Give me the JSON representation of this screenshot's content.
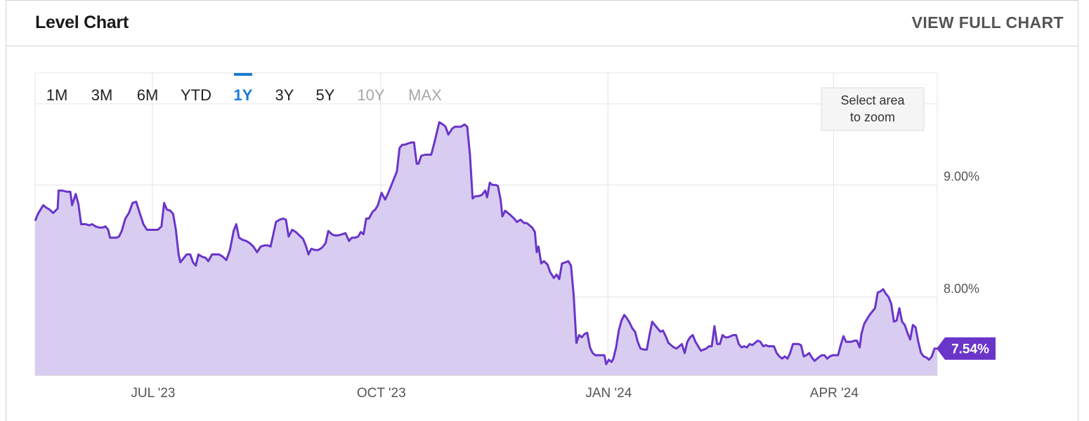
{
  "header": {
    "title": "Level Chart",
    "view_full": "VIEW FULL CHART"
  },
  "range_buttons": {
    "items": [
      "1M",
      "3M",
      "6M",
      "YTD",
      "1Y",
      "3Y",
      "5Y",
      "10Y",
      "MAX"
    ],
    "active": "1Y",
    "disabled": [
      "10Y",
      "MAX"
    ]
  },
  "zoom_hint": {
    "line1": "Select area",
    "line2": "to zoom"
  },
  "colors": {
    "line": "#6a35c9",
    "fill": "#d8cdf1",
    "active": "#1a7bd6",
    "grid": "#e4e4e4",
    "badge": "#6a35c9"
  },
  "chart_data": {
    "type": "area",
    "y_ticks": [
      "9.00%",
      "8.00%"
    ],
    "x_ticks": [
      "JUL '23",
      "OCT '23",
      "JAN '24",
      "APR '24"
    ],
    "last_value_label": "7.54%",
    "ylim": [
      7.3,
      10.0
    ],
    "xlim": [
      0,
      100
    ],
    "x_tick_positions": [
      13,
      38.3,
      63.5,
      88.5
    ],
    "y_tick_values": [
      9.0,
      8.0
    ],
    "grid": true,
    "points": [
      [
        0,
        8.68
      ],
      [
        0.3,
        8.74
      ],
      [
        0.6,
        8.78
      ],
      [
        0.9,
        8.82
      ],
      [
        1.2,
        8.8
      ],
      [
        1.6,
        8.78
      ],
      [
        2,
        8.75
      ],
      [
        2.5,
        8.79
      ],
      [
        2.6,
        8.95
      ],
      [
        3,
        8.95
      ],
      [
        3.5,
        8.94
      ],
      [
        3.9,
        8.94
      ],
      [
        4.1,
        8.82
      ],
      [
        4.5,
        8.92
      ],
      [
        4.8,
        8.83
      ],
      [
        5.1,
        8.65
      ],
      [
        5.6,
        8.65
      ],
      [
        6,
        8.64
      ],
      [
        6.3,
        8.65
      ],
      [
        6.7,
        8.63
      ],
      [
        7.1,
        8.62
      ],
      [
        7.5,
        8.62
      ],
      [
        7.8,
        8.63
      ],
      [
        8.1,
        8.6
      ],
      [
        8.3,
        8.53
      ],
      [
        8.6,
        8.53
      ],
      [
        9,
        8.53
      ],
      [
        9.3,
        8.54
      ],
      [
        9.6,
        8.59
      ],
      [
        10,
        8.7
      ],
      [
        10.4,
        8.75
      ],
      [
        10.8,
        8.84
      ],
      [
        11.2,
        8.85
      ],
      [
        11.6,
        8.75
      ],
      [
        12,
        8.65
      ],
      [
        12.4,
        8.6
      ],
      [
        12.8,
        8.6
      ],
      [
        13.2,
        8.6
      ],
      [
        13.6,
        8.6
      ],
      [
        14,
        8.63
      ],
      [
        14.3,
        8.84
      ],
      [
        14.6,
        8.78
      ],
      [
        15,
        8.77
      ],
      [
        15.3,
        8.74
      ],
      [
        15.6,
        8.6
      ],
      [
        15.9,
        8.38
      ],
      [
        16.1,
        8.31
      ],
      [
        16.4,
        8.34
      ],
      [
        16.8,
        8.38
      ],
      [
        17.2,
        8.38
      ],
      [
        17.5,
        8.31
      ],
      [
        17.8,
        8.28
      ],
      [
        18.1,
        8.38
      ],
      [
        18.5,
        8.36
      ],
      [
        18.9,
        8.35
      ],
      [
        19.2,
        8.32
      ],
      [
        19.6,
        8.38
      ],
      [
        20,
        8.38
      ],
      [
        20.4,
        8.38
      ],
      [
        20.8,
        8.36
      ],
      [
        21.2,
        8.33
      ],
      [
        21.6,
        8.42
      ],
      [
        22,
        8.59
      ],
      [
        22.3,
        8.65
      ],
      [
        22.6,
        8.53
      ],
      [
        23,
        8.51
      ],
      [
        23.4,
        8.5
      ],
      [
        23.8,
        8.48
      ],
      [
        24.2,
        8.45
      ],
      [
        24.6,
        8.4
      ],
      [
        25,
        8.45
      ],
      [
        25.4,
        8.46
      ],
      [
        25.8,
        8.46
      ],
      [
        26.1,
        8.45
      ],
      [
        26.4,
        8.56
      ],
      [
        26.7,
        8.67
      ],
      [
        27.1,
        8.69
      ],
      [
        27.5,
        8.7
      ],
      [
        27.8,
        8.69
      ],
      [
        28.1,
        8.54
      ],
      [
        28.5,
        8.6
      ],
      [
        28.9,
        8.58
      ],
      [
        29.3,
        8.55
      ],
      [
        29.7,
        8.52
      ],
      [
        30,
        8.46
      ],
      [
        30.3,
        8.38
      ],
      [
        30.6,
        8.43
      ],
      [
        31,
        8.42
      ],
      [
        31.4,
        8.42
      ],
      [
        31.8,
        8.44
      ],
      [
        32.2,
        8.48
      ],
      [
        32.5,
        8.59
      ],
      [
        32.9,
        8.56
      ],
      [
        33.2,
        8.55
      ],
      [
        33.6,
        8.55
      ],
      [
        34,
        8.56
      ],
      [
        34.4,
        8.57
      ],
      [
        34.8,
        8.5
      ],
      [
        35.1,
        8.53
      ],
      [
        35.5,
        8.53
      ],
      [
        35.8,
        8.54
      ],
      [
        36.1,
        8.58
      ],
      [
        36.4,
        8.56
      ],
      [
        36.7,
        8.7
      ],
      [
        37,
        8.7
      ],
      [
        37.4,
        8.76
      ],
      [
        37.7,
        8.78
      ],
      [
        38,
        8.82
      ],
      [
        38.4,
        8.93
      ],
      [
        38.8,
        8.87
      ],
      [
        39.1,
        8.92
      ],
      [
        39.5,
        9.0
      ],
      [
        39.8,
        9.06
      ],
      [
        40.1,
        9.12
      ],
      [
        40.4,
        9.33
      ],
      [
        40.7,
        9.36
      ],
      [
        41,
        9.36
      ],
      [
        41.3,
        9.37
      ],
      [
        41.7,
        9.38
      ],
      [
        42,
        9.38
      ],
      [
        42.3,
        9.19
      ],
      [
        42.5,
        9.19
      ],
      [
        42.8,
        9.26
      ],
      [
        43.2,
        9.27
      ],
      [
        43.6,
        9.27
      ],
      [
        43.9,
        9.27
      ],
      [
        44.2,
        9.36
      ],
      [
        44.5,
        9.46
      ],
      [
        44.8,
        9.56
      ],
      [
        45.2,
        9.54
      ],
      [
        45.5,
        9.52
      ],
      [
        45.8,
        9.45
      ],
      [
        46.2,
        9.5
      ],
      [
        46.5,
        9.52
      ],
      [
        46.9,
        9.52
      ],
      [
        47.2,
        9.52
      ],
      [
        47.6,
        9.54
      ],
      [
        47.9,
        9.52
      ],
      [
        48.2,
        9.27
      ],
      [
        48.5,
        8.88
      ],
      [
        48.8,
        8.9
      ],
      [
        49.1,
        8.9
      ],
      [
        49.5,
        8.91
      ],
      [
        49.9,
        8.95
      ],
      [
        50.1,
        8.89
      ],
      [
        50.4,
        9.02
      ],
      [
        50.7,
        9.0
      ],
      [
        51.1,
        9.0
      ],
      [
        51.3,
        8.99
      ],
      [
        51.6,
        8.87
      ],
      [
        51.8,
        8.72
      ],
      [
        52.1,
        8.77
      ],
      [
        52.4,
        8.75
      ],
      [
        52.7,
        8.73
      ],
      [
        53.1,
        8.7
      ],
      [
        53.4,
        8.67
      ],
      [
        53.8,
        8.69
      ],
      [
        54.2,
        8.66
      ],
      [
        54.5,
        8.66
      ],
      [
        54.8,
        8.64
      ],
      [
        55.1,
        8.62
      ],
      [
        55.4,
        8.58
      ],
      [
        55.6,
        8.4
      ],
      [
        55.8,
        8.45
      ],
      [
        56.1,
        8.3
      ],
      [
        56.4,
        8.32
      ],
      [
        56.8,
        8.29
      ],
      [
        57.1,
        8.22
      ],
      [
        57.5,
        8.17
      ],
      [
        57.8,
        8.2
      ],
      [
        58.1,
        8.16
      ],
      [
        58.4,
        8.3
      ],
      [
        58.8,
        8.31
      ],
      [
        59.1,
        8.32
      ],
      [
        59.4,
        8.28
      ],
      [
        59.7,
        8.02
      ],
      [
        60,
        7.59
      ],
      [
        60.3,
        7.66
      ],
      [
        60.6,
        7.64
      ],
      [
        60.9,
        7.67
      ],
      [
        61.2,
        7.68
      ],
      [
        61.5,
        7.55
      ],
      [
        61.8,
        7.5
      ],
      [
        62.1,
        7.48
      ],
      [
        62.5,
        7.48
      ],
      [
        62.8,
        7.48
      ],
      [
        63.1,
        7.48
      ],
      [
        63.3,
        7.4
      ],
      [
        63.6,
        7.44
      ],
      [
        63.9,
        7.42
      ],
      [
        64.1,
        7.45
      ],
      [
        64.4,
        7.55
      ],
      [
        64.7,
        7.7
      ],
      [
        65,
        7.79
      ],
      [
        65.3,
        7.84
      ],
      [
        65.6,
        7.81
      ],
      [
        65.9,
        7.77
      ],
      [
        66.2,
        7.72
      ],
      [
        66.5,
        7.69
      ],
      [
        66.8,
        7.6
      ],
      [
        67.1,
        7.54
      ],
      [
        67.5,
        7.53
      ],
      [
        67.8,
        7.53
      ],
      [
        68.1,
        7.66
      ],
      [
        68.4,
        7.78
      ],
      [
        68.7,
        7.75
      ],
      [
        69,
        7.72
      ],
      [
        69.3,
        7.69
      ],
      [
        69.6,
        7.7
      ],
      [
        69.9,
        7.65
      ],
      [
        70.2,
        7.59
      ],
      [
        70.5,
        7.57
      ],
      [
        70.8,
        7.55
      ],
      [
        71.1,
        7.54
      ],
      [
        71.4,
        7.56
      ],
      [
        71.7,
        7.58
      ],
      [
        72,
        7.5
      ],
      [
        72.3,
        7.6
      ],
      [
        72.6,
        7.64
      ],
      [
        72.9,
        7.66
      ],
      [
        73.2,
        7.6
      ],
      [
        73.5,
        7.56
      ],
      [
        73.8,
        7.52
      ],
      [
        74.1,
        7.53
      ],
      [
        74.4,
        7.54
      ],
      [
        74.7,
        7.56
      ],
      [
        75,
        7.56
      ],
      [
        75.3,
        7.74
      ],
      [
        75.6,
        7.58
      ],
      [
        75.9,
        7.58
      ],
      [
        76.2,
        7.66
      ],
      [
        76.5,
        7.64
      ],
      [
        76.8,
        7.64
      ],
      [
        77.1,
        7.65
      ],
      [
        77.4,
        7.66
      ],
      [
        77.7,
        7.66
      ],
      [
        78,
        7.58
      ],
      [
        78.3,
        7.55
      ],
      [
        78.6,
        7.56
      ],
      [
        78.9,
        7.55
      ],
      [
        79.2,
        7.58
      ],
      [
        79.5,
        7.57
      ],
      [
        79.8,
        7.59
      ],
      [
        80.1,
        7.61
      ],
      [
        80.4,
        7.6
      ],
      [
        80.7,
        7.56
      ],
      [
        81,
        7.57
      ],
      [
        81.3,
        7.56
      ],
      [
        81.6,
        7.56
      ],
      [
        81.9,
        7.56
      ],
      [
        82.2,
        7.5
      ],
      [
        82.5,
        7.47
      ],
      [
        82.8,
        7.45
      ],
      [
        83.1,
        7.47
      ],
      [
        83.4,
        7.45
      ],
      [
        83.7,
        7.5
      ],
      [
        84,
        7.58
      ],
      [
        84.3,
        7.58
      ],
      [
        84.6,
        7.58
      ],
      [
        84.9,
        7.57
      ],
      [
        85.2,
        7.47
      ],
      [
        85.5,
        7.48
      ],
      [
        85.8,
        7.5
      ],
      [
        86.1,
        7.46
      ],
      [
        86.4,
        7.43
      ],
      [
        86.7,
        7.45
      ],
      [
        87,
        7.47
      ],
      [
        87.2,
        7.48
      ],
      [
        87.5,
        7.48
      ],
      [
        87.8,
        7.45
      ],
      [
        88.1,
        7.47
      ],
      [
        88.4,
        7.48
      ],
      [
        88.7,
        7.48
      ],
      [
        89,
        7.48
      ],
      [
        89.3,
        7.57
      ],
      [
        89.6,
        7.65
      ],
      [
        89.9,
        7.6
      ],
      [
        90.2,
        7.6
      ],
      [
        90.5,
        7.6
      ],
      [
        90.8,
        7.61
      ],
      [
        91.1,
        7.61
      ],
      [
        91.4,
        7.55
      ],
      [
        91.6,
        7.67
      ],
      [
        91.9,
        7.76
      ],
      [
        92.2,
        7.8
      ],
      [
        92.5,
        7.84
      ],
      [
        92.8,
        7.87
      ],
      [
        93.1,
        7.9
      ],
      [
        93.4,
        8.04
      ],
      [
        93.7,
        8.05
      ],
      [
        94,
        8.07
      ],
      [
        94.3,
        8.03
      ],
      [
        94.6,
        8.0
      ],
      [
        94.9,
        7.94
      ],
      [
        95.2,
        7.78
      ],
      [
        95.5,
        7.79
      ],
      [
        95.8,
        7.9
      ],
      [
        96.1,
        7.78
      ],
      [
        96.4,
        7.75
      ],
      [
        96.7,
        7.68
      ],
      [
        97,
        7.62
      ],
      [
        97.3,
        7.75
      ],
      [
        97.6,
        7.73
      ],
      [
        97.9,
        7.6
      ],
      [
        98.2,
        7.5
      ],
      [
        98.5,
        7.47
      ],
      [
        98.8,
        7.46
      ],
      [
        99.1,
        7.44
      ],
      [
        99.4,
        7.47
      ],
      [
        99.7,
        7.54
      ],
      [
        100,
        7.54
      ]
    ]
  }
}
